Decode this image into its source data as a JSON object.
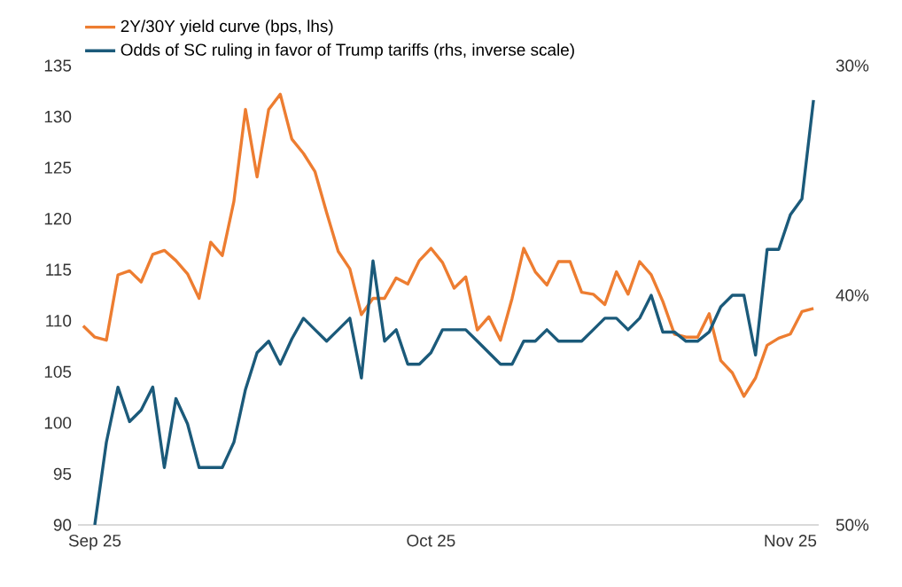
{
  "chart_data": {
    "type": "line",
    "categories": [
      null,
      "Sep 25",
      null,
      null,
      null,
      null,
      null,
      null,
      null,
      null,
      null,
      null,
      null,
      null,
      null,
      null,
      null,
      null,
      null,
      null,
      null,
      null,
      null,
      null,
      null,
      null,
      null,
      null,
      null,
      null,
      "Oct 25",
      null,
      null,
      null,
      null,
      null,
      null,
      null,
      null,
      null,
      null,
      null,
      null,
      null,
      null,
      null,
      null,
      null,
      null,
      null,
      null,
      null,
      null,
      null,
      null,
      null,
      null,
      null,
      null,
      null,
      null,
      "Nov 25",
      null,
      null
    ],
    "series": [
      {
        "name": "2Y/30Y yield curve (bps, lhs)",
        "color": "#ed7d31",
        "values": [
          109.5,
          108.4,
          108.1,
          114.5,
          114.9,
          113.8,
          116.5,
          116.9,
          115.9,
          114.6,
          112.2,
          117.7,
          116.4,
          121.7,
          130.7,
          124.1,
          130.7,
          132.2,
          127.8,
          126.4,
          124.6,
          120.6,
          116.8,
          115.1,
          110.6,
          112.2,
          112.2,
          114.2,
          113.6,
          115.9,
          117.1,
          115.7,
          113.2,
          114.3,
          109.1,
          110.4,
          108.1,
          112.2,
          117.1,
          114.8,
          113.5,
          115.8,
          115.8,
          112.8,
          112.6,
          111.6,
          114.8,
          112.6,
          115.8,
          114.5,
          111.9,
          108.7,
          108.4,
          108.4,
          110.7,
          106.1,
          104.9,
          102.6,
          104.4,
          107.6,
          108.3,
          108.7,
          110.9,
          111.2
        ]
      },
      {
        "name": "Odds of SC ruling in favor of Trump tariffs (rhs, inverse scale)",
        "color": "#1b5a7a",
        "axis": "y2",
        "values": [
          null,
          50,
          46.4,
          44.0,
          45.5,
          45.0,
          44.0,
          47.5,
          44.5,
          45.6,
          47.5,
          47.5,
          47.5,
          46.4,
          44.1,
          42.5,
          42.0,
          43.0,
          41.9,
          41.0,
          41.5,
          42.0,
          41.5,
          41.0,
          43.6,
          38.5,
          42.0,
          41.5,
          43.0,
          43.0,
          42.5,
          41.5,
          41.5,
          41.5,
          42.0,
          42.5,
          43.0,
          43.0,
          42.0,
          42.0,
          41.5,
          42.0,
          42.0,
          42.0,
          41.5,
          41.0,
          41.0,
          41.5,
          41.0,
          40.0,
          41.6,
          41.6,
          42.0,
          42.0,
          41.6,
          40.5,
          40.0,
          40.0,
          42.6,
          38.0,
          38.0,
          36.5,
          35.8,
          31.5
        ]
      }
    ],
    "ylim": [
      90,
      135
    ],
    "yticks": [
      90,
      95,
      100,
      105,
      110,
      115,
      120,
      125,
      130,
      135
    ],
    "y2lim": [
      50,
      30
    ],
    "y2ticks": [
      {
        "value": 30,
        "label": "30%"
      },
      {
        "value": 40,
        "label": "40%"
      },
      {
        "value": 50,
        "label": "50%"
      }
    ],
    "legend": "top left"
  }
}
